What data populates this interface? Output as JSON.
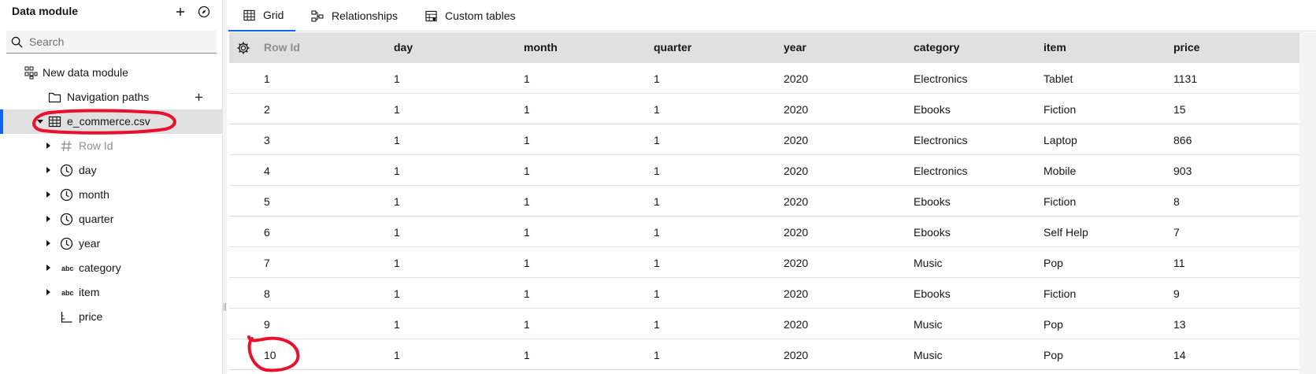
{
  "sidebar": {
    "title": "Data module",
    "search": {
      "placeholder": "Search",
      "value": ""
    },
    "tree": {
      "module": "New data module",
      "navigation_paths": "Navigation paths",
      "table": "e_commerce.csv",
      "columns": [
        {
          "label": "Row Id",
          "icon": "hash-icon",
          "dim": true
        },
        {
          "label": "day",
          "icon": "clock-icon"
        },
        {
          "label": "month",
          "icon": "clock-icon"
        },
        {
          "label": "quarter",
          "icon": "clock-icon"
        },
        {
          "label": "year",
          "icon": "clock-icon"
        },
        {
          "label": "category",
          "icon": "abc-text-icon",
          "icon_text": "abc"
        },
        {
          "label": "item",
          "icon": "abc-text-icon",
          "icon_text": "abc"
        },
        {
          "label": "price",
          "icon": "measure-icon"
        }
      ]
    }
  },
  "tabs": [
    {
      "label": "Grid",
      "icon": "table-icon",
      "active": true
    },
    {
      "label": "Relationships",
      "icon": "relationship-icon"
    },
    {
      "label": "Custom tables",
      "icon": "custom-table-icon"
    }
  ],
  "grid": {
    "columns": [
      "Row Id",
      "day",
      "month",
      "quarter",
      "year",
      "category",
      "item",
      "price"
    ],
    "rows": [
      [
        "1",
        "1",
        "1",
        "1",
        "2020",
        "Electronics",
        "Tablet",
        "1131"
      ],
      [
        "2",
        "1",
        "1",
        "1",
        "2020",
        "Ebooks",
        "Fiction",
        "15"
      ],
      [
        "3",
        "1",
        "1",
        "1",
        "2020",
        "Electronics",
        "Laptop",
        "866"
      ],
      [
        "4",
        "1",
        "1",
        "1",
        "2020",
        "Electronics",
        "Mobile",
        "903"
      ],
      [
        "5",
        "1",
        "1",
        "1",
        "2020",
        "Ebooks",
        "Fiction",
        "8"
      ],
      [
        "6",
        "1",
        "1",
        "1",
        "2020",
        "Ebooks",
        "Self Help",
        "7"
      ],
      [
        "7",
        "1",
        "1",
        "1",
        "2020",
        "Music",
        "Pop",
        "11"
      ],
      [
        "8",
        "1",
        "1",
        "1",
        "2020",
        "Ebooks",
        "Fiction",
        "9"
      ],
      [
        "9",
        "1",
        "1",
        "1",
        "2020",
        "Music",
        "Pop",
        "13"
      ],
      [
        "10",
        "1",
        "1",
        "1",
        "2020",
        "Music",
        "Pop",
        "14"
      ]
    ]
  },
  "colors": {
    "accent": "#0f62fe",
    "annotation": "#e8102a",
    "header_bg": "#e0e0e0"
  }
}
